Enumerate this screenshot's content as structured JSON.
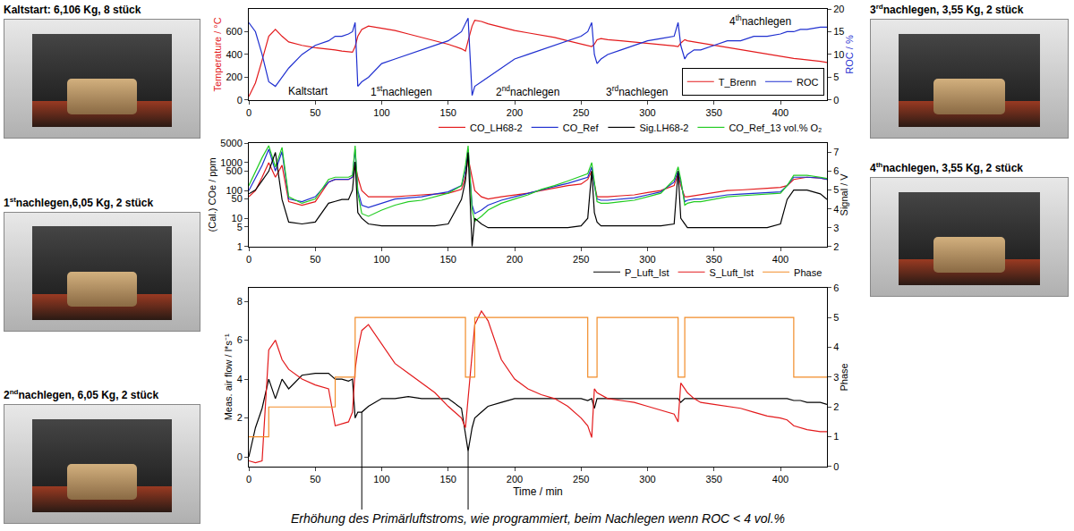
{
  "chart_data": [
    {
      "type": "line",
      "xlim": [
        0,
        435
      ],
      "xticks": [
        0,
        50,
        100,
        150,
        200,
        250,
        300,
        350,
        400
      ],
      "ylabel": "Temperature / °C",
      "ylim": [
        0,
        800
      ],
      "yticks": [
        0,
        200,
        400,
        600
      ],
      "y2label": "ROC / %",
      "y2lim": [
        0,
        20
      ],
      "y2ticks": [
        0,
        5,
        10,
        15,
        20
      ],
      "grid": false,
      "legend": "lower right",
      "x": [
        0,
        5,
        10,
        15,
        20,
        25,
        30,
        40,
        50,
        60,
        65,
        70,
        75,
        78,
        80,
        82,
        85,
        90,
        100,
        110,
        120,
        130,
        140,
        150,
        160,
        163,
        165,
        168,
        170,
        175,
        180,
        190,
        200,
        210,
        220,
        230,
        240,
        250,
        255,
        258,
        260,
        262,
        265,
        270,
        280,
        290,
        300,
        310,
        320,
        323,
        325,
        328,
        330,
        335,
        340,
        350,
        360,
        370,
        380,
        390,
        400,
        405,
        410,
        415,
        420,
        430,
        435
      ],
      "series": [
        {
          "name": "T_Brenn",
          "color": "#e31a1c",
          "line_style": "solid",
          "values": [
            30,
            150,
            350,
            560,
            620,
            560,
            510,
            480,
            460,
            450,
            440,
            430,
            425,
            420,
            470,
            560,
            620,
            650,
            630,
            610,
            580,
            550,
            520,
            490,
            450,
            430,
            520,
            650,
            700,
            690,
            670,
            640,
            610,
            590,
            570,
            550,
            520,
            490,
            480,
            470,
            490,
            530,
            540,
            530,
            520,
            510,
            500,
            490,
            475,
            470,
            500,
            530,
            520,
            510,
            500,
            480,
            460,
            440,
            420,
            400,
            385,
            375,
            365,
            360,
            355,
            340,
            330
          ]
        },
        {
          "name": "ROC",
          "color": "#1f2fd0",
          "axis": "y2",
          "line_style": "solid",
          "values": [
            17,
            15,
            10,
            4,
            3,
            5,
            7,
            10,
            12,
            13,
            14,
            14,
            14.5,
            15,
            17,
            3,
            4,
            5,
            8,
            9,
            10,
            11,
            12,
            13,
            15,
            17,
            18,
            1,
            3,
            4,
            5,
            7,
            9,
            10,
            11,
            12,
            13,
            14,
            15,
            17,
            10,
            8,
            9,
            10,
            11,
            12,
            13,
            13.5,
            14,
            17,
            12,
            9,
            10,
            11,
            11,
            12,
            13,
            13,
            14,
            14,
            14.5,
            15,
            15,
            15.5,
            15.5,
            16,
            16
          ]
        }
      ],
      "annotations": [
        {
          "text": "Kaltstart",
          "x": 45,
          "y": 80
        },
        {
          "text": "1stnachlegen",
          "x": 115,
          "y": 80
        },
        {
          "text": "2ndnachlegen",
          "x": 210,
          "y": 80
        },
        {
          "text": "3rdnachlegen",
          "x": 292,
          "y": 80
        },
        {
          "text": "4thnachlegen",
          "x": 385,
          "y": 700
        }
      ]
    },
    {
      "type": "line",
      "log": "y",
      "xlim": [
        0,
        435
      ],
      "xticks": [
        0,
        50,
        100,
        150,
        200,
        250,
        300,
        350,
        400
      ],
      "ylabel": "(Cal.) COe / ppm",
      "ylim": [
        1,
        5000
      ],
      "yticks": [
        1,
        5,
        10,
        50,
        100,
        500,
        1000,
        5000
      ],
      "y2label": "Signal / V",
      "y2lim": [
        2,
        7.5
      ],
      "y2ticks": [
        2,
        3,
        4,
        5,
        6,
        7
      ],
      "grid": false,
      "legend": "top",
      "x": [
        0,
        5,
        10,
        15,
        20,
        25,
        30,
        40,
        50,
        60,
        65,
        70,
        75,
        78,
        80,
        82,
        85,
        90,
        100,
        110,
        120,
        130,
        140,
        150,
        160,
        163,
        165,
        168,
        170,
        175,
        180,
        190,
        200,
        210,
        220,
        230,
        240,
        250,
        255,
        258,
        260,
        262,
        265,
        270,
        280,
        290,
        300,
        310,
        320,
        323,
        325,
        328,
        330,
        335,
        340,
        350,
        360,
        370,
        380,
        390,
        400,
        405,
        410,
        415,
        420,
        430,
        435
      ],
      "series": [
        {
          "name": "CO_LH68-2",
          "color": "#e31a1c",
          "line_style": "solid",
          "values": [
            60,
            100,
            300,
            1000,
            300,
            800,
            40,
            30,
            40,
            200,
            250,
            250,
            250,
            300,
            1000,
            300,
            100,
            60,
            60,
            60,
            65,
            70,
            75,
            80,
            110,
            300,
            1500,
            300,
            100,
            60,
            50,
            60,
            70,
            80,
            100,
            120,
            150,
            170,
            250,
            500,
            150,
            60,
            60,
            60,
            65,
            70,
            85,
            100,
            150,
            400,
            150,
            60,
            60,
            65,
            70,
            85,
            100,
            105,
            110,
            120,
            130,
            150,
            250,
            280,
            300,
            280,
            250
          ]
        },
        {
          "name": "CO_Ref",
          "color": "#1f2fd0",
          "line_style": "solid",
          "values": [
            100,
            300,
            800,
            3000,
            500,
            2500,
            50,
            40,
            60,
            200,
            250,
            250,
            250,
            300,
            3000,
            100,
            30,
            25,
            35,
            50,
            55,
            60,
            75,
            90,
            150,
            500,
            3000,
            30,
            15,
            20,
            30,
            45,
            60,
            80,
            110,
            140,
            180,
            250,
            300,
            700,
            150,
            50,
            45,
            45,
            50,
            55,
            70,
            90,
            200,
            500,
            200,
            40,
            45,
            50,
            50,
            60,
            70,
            75,
            80,
            85,
            90,
            150,
            300,
            300,
            300,
            280,
            250
          ]
        },
        {
          "name": "Sig.LH68-2",
          "color": "#000000",
          "axis": "y2",
          "line_style": "solid",
          "values": [
            4.8,
            5.0,
            5.5,
            6.0,
            7.0,
            4.5,
            3.3,
            3.2,
            3.3,
            4.3,
            4.4,
            4.5,
            4.5,
            5.0,
            6.5,
            3.8,
            3.5,
            3.2,
            3.1,
            3.1,
            3.1,
            3.1,
            3.1,
            3.2,
            4.5,
            5.5,
            7.0,
            2.0,
            3.5,
            3.2,
            3.0,
            3.0,
            3.0,
            3.0,
            3.0,
            3.0,
            3.0,
            3.1,
            3.5,
            6.0,
            3.8,
            3.3,
            3.1,
            3.1,
            3.1,
            3.1,
            3.1,
            3.1,
            3.2,
            6.0,
            3.5,
            3.2,
            3.0,
            3.0,
            3.0,
            3.0,
            3.0,
            3.0,
            3.0,
            3.0,
            3.2,
            4.5,
            5.0,
            5.0,
            5.0,
            4.8,
            4.5
          ]
        },
        {
          "name": "CO_Ref_13 vol.% O₂",
          "color": "#22cc22",
          "line_style": "solid",
          "values": [
            150,
            500,
            1500,
            4000,
            700,
            3500,
            60,
            35,
            50,
            250,
            300,
            300,
            300,
            350,
            4000,
            80,
            15,
            12,
            20,
            30,
            40,
            45,
            60,
            80,
            150,
            800,
            4000,
            20,
            8,
            12,
            20,
            35,
            50,
            70,
            110,
            150,
            220,
            320,
            400,
            1000,
            180,
            40,
            35,
            35,
            40,
            45,
            60,
            80,
            250,
            700,
            250,
            30,
            35,
            40,
            40,
            50,
            60,
            65,
            70,
            75,
            80,
            150,
            350,
            350,
            350,
            300,
            270
          ]
        }
      ]
    },
    {
      "type": "line",
      "xlabel": "Time / min",
      "xlim": [
        0,
        435
      ],
      "xticks": [
        0,
        50,
        100,
        150,
        200,
        250,
        300,
        350,
        400
      ],
      "ylabel": "Meas. air flow / l*s⁻¹",
      "ylim": [
        -0.5,
        8.7
      ],
      "yticks": [
        0,
        2,
        4,
        6,
        8
      ],
      "y2label": "Phase",
      "y2lim": [
        0,
        6
      ],
      "y2ticks": [
        0,
        1,
        2,
        3,
        4,
        5,
        6
      ],
      "grid": false,
      "legend": "top",
      "x": [
        0,
        5,
        10,
        15,
        20,
        25,
        30,
        40,
        50,
        60,
        65,
        70,
        75,
        78,
        80,
        82,
        85,
        90,
        100,
        110,
        120,
        130,
        140,
        150,
        160,
        163,
        165,
        168,
        170,
        175,
        180,
        190,
        200,
        210,
        220,
        230,
        240,
        250,
        255,
        258,
        260,
        262,
        265,
        270,
        280,
        290,
        300,
        310,
        320,
        323,
        325,
        328,
        330,
        335,
        340,
        350,
        360,
        370,
        380,
        390,
        400,
        405,
        410,
        415,
        420,
        430,
        435
      ],
      "series": [
        {
          "name": "P_Luft_Ist",
          "color": "#000000",
          "line_style": "solid",
          "values": [
            0,
            1.5,
            2.5,
            4.0,
            3.0,
            4.0,
            3.5,
            4.2,
            4.3,
            4.3,
            4.0,
            4.0,
            3.9,
            4.0,
            2.0,
            2.3,
            2.3,
            2.6,
            3.0,
            3.0,
            3.1,
            3.0,
            3.0,
            3.0,
            2.5,
            1.2,
            0.3,
            1.5,
            2.0,
            2.3,
            2.6,
            2.8,
            3.0,
            3.0,
            3.0,
            3.0,
            3.0,
            3.0,
            2.9,
            3.0,
            2.5,
            3.0,
            3.0,
            3.0,
            3.0,
            3.0,
            3.0,
            3.0,
            3.0,
            3.0,
            2.8,
            3.0,
            3.0,
            3.0,
            3.0,
            3.0,
            3.0,
            3.0,
            3.0,
            3.0,
            3.0,
            3.0,
            2.9,
            2.9,
            2.8,
            2.8,
            2.7
          ]
        },
        {
          "name": "S_Luft_Ist",
          "color": "#e31a1c",
          "line_style": "solid",
          "values": [
            -0.2,
            -0.3,
            -0.2,
            5.5,
            6.0,
            5.0,
            4.5,
            4.0,
            3.7,
            3.5,
            1.6,
            1.7,
            1.8,
            2.3,
            4.5,
            5.5,
            6.5,
            6.8,
            5.8,
            4.8,
            4.3,
            3.8,
            3.3,
            2.6,
            2.0,
            1.5,
            3.0,
            5.5,
            6.8,
            7.5,
            7.0,
            5.0,
            4.0,
            3.5,
            3.2,
            3.0,
            2.6,
            2.0,
            1.6,
            1.0,
            3.5,
            3.3,
            3.2,
            3.0,
            2.9,
            2.8,
            2.6,
            2.4,
            2.2,
            1.8,
            3.8,
            3.5,
            3.3,
            3.0,
            2.8,
            2.7,
            2.6,
            2.5,
            2.3,
            2.1,
            2.0,
            1.9,
            1.6,
            1.5,
            1.4,
            1.3,
            1.3
          ]
        },
        {
          "name": "Phase",
          "color": "#f28c28",
          "axis": "y2",
          "line_style": "step",
          "values": [
            1,
            1,
            1,
            2,
            2,
            2,
            2,
            2,
            2,
            2,
            3,
            3,
            3,
            3,
            5,
            5,
            5,
            5,
            5,
            5,
            5,
            5,
            5,
            5,
            5,
            3,
            3,
            3,
            5,
            5,
            5,
            5,
            5,
            5,
            5,
            5,
            5,
            5,
            3,
            3,
            3,
            5,
            5,
            5,
            5,
            5,
            5,
            5,
            5,
            3,
            3,
            5,
            5,
            5,
            5,
            5,
            5,
            5,
            5,
            5,
            5,
            5,
            3,
            3,
            3,
            3,
            3
          ]
        }
      ],
      "annotations": [
        {
          "text": "Erhöhung des Primärluftstroms, wie programmiert, beim Nachlegen wenn ROC < 4 vol.%",
          "points": [
            [
              85,
              2.3
            ],
            [
              165,
              0.3
            ]
          ]
        }
      ]
    }
  ],
  "left_photos": [
    "Kaltstart: 6,106 Kg, 8 stück",
    "1stnachlegen,6,05 Kg, 2 stück",
    "2ndnachlegen, 6,05 Kg, 2 stück"
  ],
  "right_photos": [
    "3rdnachlegen, 3,55 Kg, 2 stück",
    "4thnachlegen, 3,55 Kg, 2 stück"
  ]
}
